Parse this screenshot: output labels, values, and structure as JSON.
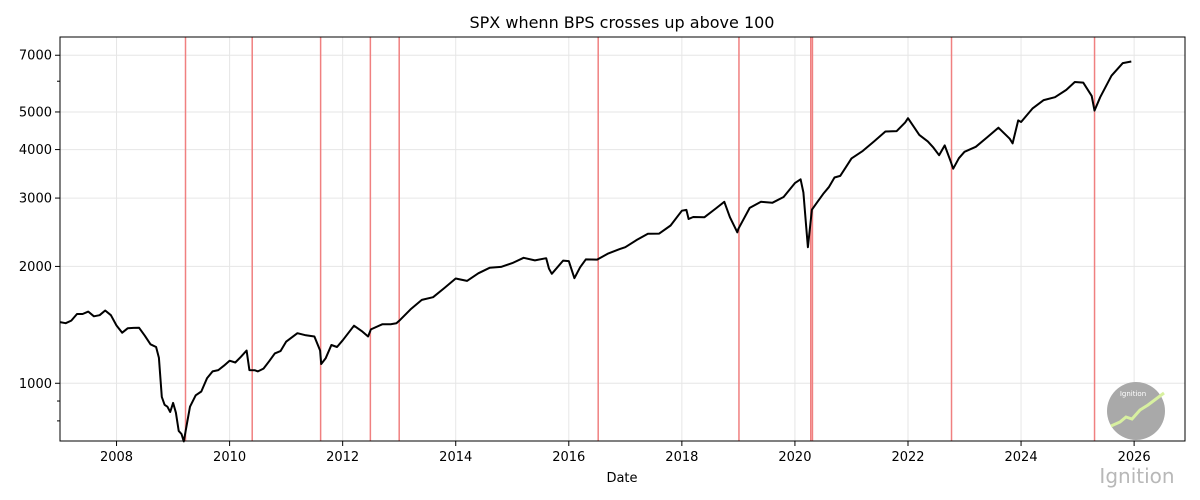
{
  "chart_data": {
    "type": "line",
    "title": "SPX whenn BPS crosses up above 100",
    "xlabel": "Date",
    "ylabel": "",
    "yscale": "log",
    "xlim": [
      2007.0,
      2026.9
    ],
    "ylim": [
      710,
      7800
    ],
    "x_ticks": [
      2008,
      2010,
      2012,
      2014,
      2016,
      2018,
      2020,
      2022,
      2024,
      2026
    ],
    "y_ticks": [
      1000,
      2000,
      3000,
      4000,
      5000,
      7000
    ],
    "grid": true,
    "line_color": "#000000",
    "event_line_color": "#f08080",
    "series": [
      {
        "x": [
          2007.0,
          2007.1,
          2007.2,
          2007.3,
          2007.4,
          2007.5,
          2007.6,
          2007.7,
          2007.8,
          2007.9,
          2008.0,
          2008.1,
          2008.2,
          2008.3,
          2008.4,
          2008.5,
          2008.6,
          2008.7,
          2008.75,
          2008.8,
          2008.85,
          2008.9,
          2008.95,
          2009.0,
          2009.05,
          2009.1,
          2009.15,
          2009.19,
          2009.25,
          2009.3,
          2009.4,
          2009.5,
          2009.6,
          2009.7,
          2009.8,
          2009.9,
          2010.0,
          2010.1,
          2010.2,
          2010.3,
          2010.35,
          2010.45,
          2010.5,
          2010.6,
          2010.7,
          2010.8,
          2010.9,
          2011.0,
          2011.2,
          2011.35,
          2011.5,
          2011.6,
          2011.62,
          2011.7,
          2011.8,
          2011.9,
          2012.0,
          2012.2,
          2012.35,
          2012.45,
          2012.5,
          2012.7,
          2012.85,
          2012.95,
          2013.0,
          2013.2,
          2013.4,
          2013.6,
          2013.8,
          2014.0,
          2014.2,
          2014.4,
          2014.6,
          2014.8,
          2015.0,
          2015.2,
          2015.4,
          2015.6,
          2015.65,
          2015.7,
          2015.9,
          2016.0,
          2016.1,
          2016.2,
          2016.3,
          2016.5,
          2016.7,
          2016.9,
          2017.0,
          2017.2,
          2017.4,
          2017.6,
          2017.8,
          2018.0,
          2018.08,
          2018.12,
          2018.2,
          2018.4,
          2018.6,
          2018.75,
          2018.85,
          2018.95,
          2018.98,
          2019.0,
          2019.2,
          2019.4,
          2019.6,
          2019.8,
          2020.0,
          2020.1,
          2020.15,
          2020.2,
          2020.23,
          2020.3,
          2020.4,
          2020.5,
          2020.6,
          2020.7,
          2020.8,
          2020.9,
          2021.0,
          2021.2,
          2021.4,
          2021.6,
          2021.8,
          2021.95,
          2022.0,
          2022.2,
          2022.35,
          2022.45,
          2022.55,
          2022.65,
          2022.75,
          2022.8,
          2022.9,
          2023.0,
          2023.2,
          2023.4,
          2023.6,
          2023.8,
          2023.85,
          2023.95,
          2024.0,
          2024.2,
          2024.4,
          2024.6,
          2024.8,
          2024.95,
          2025.1,
          2025.25,
          2025.3,
          2025.4,
          2025.6,
          2025.8,
          2025.95
        ],
        "y": [
          1420,
          1440,
          1450,
          1490,
          1520,
          1530,
          1470,
          1510,
          1540,
          1480,
          1420,
          1350,
          1370,
          1400,
          1390,
          1310,
          1270,
          1240,
          1150,
          930,
          880,
          860,
          850,
          890,
          830,
          760,
          740,
          700,
          800,
          870,
          920,
          960,
          1030,
          1060,
          1090,
          1110,
          1130,
          1140,
          1170,
          1200,
          1090,
          1080,
          1060,
          1100,
          1140,
          1180,
          1220,
          1280,
          1330,
          1340,
          1320,
          1200,
          1130,
          1160,
          1240,
          1250,
          1290,
          1390,
          1370,
          1320,
          1360,
          1430,
          1420,
          1410,
          1460,
          1550,
          1620,
          1680,
          1760,
          1840,
          1850,
          1920,
          1960,
          2010,
          2040,
          2080,
          2090,
          2100,
          1950,
          1930,
          2070,
          2040,
          1880,
          1990,
          2060,
          2100,
          2160,
          2190,
          2260,
          2340,
          2400,
          2450,
          2550,
          2750,
          2820,
          2650,
          2650,
          2700,
          2820,
          2900,
          2700,
          2500,
          2420,
          2520,
          2830,
          2900,
          2940,
          3020,
          3240,
          3380,
          3100,
          2500,
          2260,
          2800,
          2900,
          3100,
          3200,
          3350,
          3450,
          3600,
          3750,
          4000,
          4200,
          4400,
          4500,
          4700,
          4760,
          4400,
          4200,
          4000,
          3900,
          4100,
          3700,
          3600,
          3800,
          3900,
          4100,
          4300,
          4500,
          4300,
          4150,
          4700,
          4750,
          5100,
          5300,
          5500,
          5700,
          5900,
          6000,
          5500,
          4980,
          5500,
          6200,
          6600,
          6800
        ]
      }
    ],
    "event_lines": [
      2009.22,
      2010.4,
      2011.61,
      2012.49,
      2013.0,
      2016.52,
      2019.01,
      2020.28,
      2020.31,
      2022.77,
      2025.3
    ]
  },
  "watermark": {
    "text": "Ignition",
    "logo_text": "Ignition"
  }
}
